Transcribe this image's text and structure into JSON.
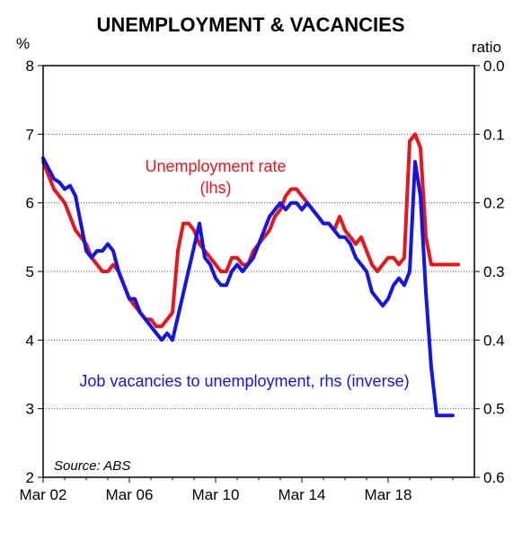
{
  "chart_data": {
    "type": "line",
    "title": "UNEMPLOYMENT & VACANCIES",
    "y_left_unit": "%",
    "y_right_unit": "ratio",
    "x_ticks": [
      "Mar 02",
      "Mar 06",
      "Mar 10",
      "Mar 14",
      "Mar 18"
    ],
    "x_tick_values": [
      2002.25,
      2006.25,
      2010.25,
      2014.25,
      2018.25
    ],
    "xlim": [
      2002.25,
      2022.25
    ],
    "ylim_left": [
      2,
      8
    ],
    "ylim_right": [
      0.6,
      0.0
    ],
    "y_left_ticks": [
      "8",
      "7",
      "6",
      "5",
      "4",
      "3",
      "2"
    ],
    "y_right_ticks": [
      "0.0",
      "0.1",
      "0.2",
      "0.3",
      "0.4",
      "0.5",
      "0.6"
    ],
    "grid": "horizontal-dotted",
    "source": "Source: ABS",
    "series": [
      {
        "name": "Unemployment rate",
        "label_lines": [
          "Unemployment rate",
          "(lhs)"
        ],
        "axis": "left",
        "color": "#e8151b",
        "x": [
          2002.25,
          2002.5,
          2002.75,
          2003.0,
          2003.25,
          2003.5,
          2003.75,
          2004.0,
          2004.25,
          2004.5,
          2004.75,
          2005.0,
          2005.25,
          2005.5,
          2005.75,
          2006.0,
          2006.25,
          2006.5,
          2006.75,
          2007.0,
          2007.25,
          2007.5,
          2007.75,
          2008.0,
          2008.25,
          2008.5,
          2008.75,
          2009.0,
          2009.25,
          2009.5,
          2009.75,
          2010.0,
          2010.25,
          2010.5,
          2010.75,
          2011.0,
          2011.25,
          2011.5,
          2011.75,
          2012.0,
          2012.25,
          2012.5,
          2012.75,
          2013.0,
          2013.25,
          2013.5,
          2013.75,
          2014.0,
          2014.25,
          2014.5,
          2014.75,
          2015.0,
          2015.25,
          2015.5,
          2015.75,
          2016.0,
          2016.25,
          2016.5,
          2016.75,
          2017.0,
          2017.25,
          2017.5,
          2017.75,
          2018.0,
          2018.25,
          2018.5,
          2018.75,
          2019.0,
          2019.25,
          2019.5,
          2019.75,
          2020.0,
          2020.25,
          2020.5,
          2020.75,
          2021.0,
          2021.25,
          2021.5
        ],
        "values": [
          6.6,
          6.4,
          6.2,
          6.1,
          6.0,
          5.8,
          5.6,
          5.5,
          5.4,
          5.2,
          5.1,
          5.0,
          5.0,
          5.1,
          5.0,
          4.8,
          4.6,
          4.5,
          4.4,
          4.3,
          4.3,
          4.2,
          4.2,
          4.3,
          4.4,
          5.3,
          5.7,
          5.7,
          5.6,
          5.4,
          5.3,
          5.2,
          5.1,
          5.0,
          5.0,
          5.2,
          5.2,
          5.1,
          5.1,
          5.3,
          5.4,
          5.5,
          5.6,
          5.8,
          5.9,
          6.1,
          6.2,
          6.2,
          6.1,
          6.0,
          5.9,
          5.8,
          5.7,
          5.7,
          5.6,
          5.8,
          5.6,
          5.5,
          5.4,
          5.5,
          5.3,
          5.1,
          5.0,
          5.1,
          5.2,
          5.2,
          5.1,
          5.2,
          6.9,
          7.0,
          6.8,
          5.5,
          5.1,
          5.1,
          5.1,
          5.1,
          5.1,
          5.1
        ]
      },
      {
        "name": "Job vacancies to unemployment, rhs (inverse)",
        "label_lines": [
          "Job vacancies to unemployment, rhs (inverse)"
        ],
        "axis": "right",
        "color": "#1414e6",
        "x": [
          2002.25,
          2002.5,
          2002.75,
          2003.0,
          2003.25,
          2003.5,
          2003.75,
          2004.0,
          2004.25,
          2004.5,
          2004.75,
          2005.0,
          2005.25,
          2005.5,
          2005.75,
          2006.0,
          2006.25,
          2006.5,
          2006.75,
          2007.0,
          2007.25,
          2007.5,
          2007.75,
          2008.0,
          2008.25,
          2009.5,
          2009.75,
          2010.0,
          2010.25,
          2010.5,
          2010.75,
          2011.0,
          2011.25,
          2011.5,
          2011.75,
          2012.0,
          2012.25,
          2012.5,
          2012.75,
          2013.0,
          2013.25,
          2013.5,
          2013.75,
          2014.0,
          2014.25,
          2014.5,
          2014.75,
          2015.0,
          2015.25,
          2015.5,
          2015.75,
          2016.0,
          2016.25,
          2016.5,
          2016.75,
          2017.0,
          2017.25,
          2017.5,
          2017.75,
          2018.0,
          2018.25,
          2018.5,
          2018.75,
          2019.0,
          2019.25,
          2019.5,
          2019.75,
          2020.0,
          2020.25,
          2020.5,
          2020.75,
          2021.0,
          2021.25
        ],
        "values": [
          0.135,
          0.15,
          0.165,
          0.17,
          0.18,
          0.175,
          0.19,
          0.23,
          0.27,
          0.28,
          0.27,
          0.27,
          0.26,
          0.27,
          0.3,
          0.32,
          0.34,
          0.34,
          0.36,
          0.37,
          0.38,
          0.39,
          0.4,
          0.39,
          0.4,
          0.23,
          0.28,
          0.29,
          0.31,
          0.32,
          0.32,
          0.3,
          0.29,
          0.3,
          0.29,
          0.28,
          0.26,
          0.24,
          0.22,
          0.21,
          0.2,
          0.21,
          0.2,
          0.2,
          0.21,
          0.2,
          0.21,
          0.22,
          0.23,
          0.23,
          0.24,
          0.25,
          0.25,
          0.26,
          0.28,
          0.29,
          0.3,
          0.33,
          0.34,
          0.35,
          0.34,
          0.32,
          0.31,
          0.32,
          0.3,
          0.14,
          0.19,
          0.33,
          0.44,
          0.51,
          0.51,
          0.51,
          0.51
        ]
      }
    ]
  }
}
